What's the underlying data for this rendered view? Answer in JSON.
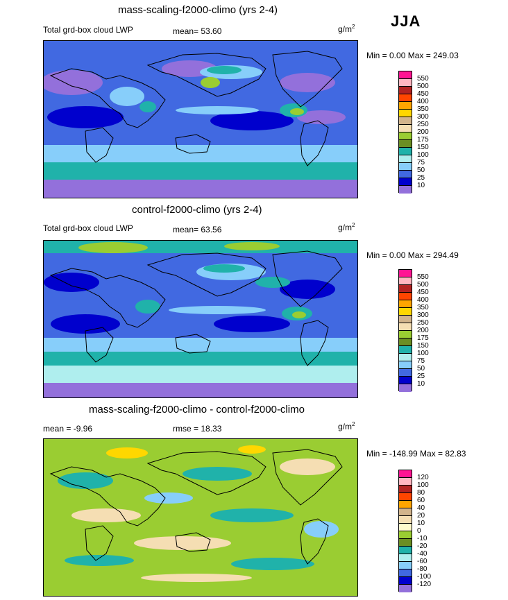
{
  "season": "JJA",
  "panels": [
    {
      "title": "mass-scaling-f2000-climo (yrs 2-4)",
      "left_label": "Total grd-box cloud LWP",
      "stat_label": "mean=",
      "stat_value": "53.60",
      "unit": "g/m",
      "unit_exp": "2",
      "minmax": "Min =   0.00 Max = 249.03",
      "legend_ticks": [
        "550",
        "500",
        "450",
        "400",
        "350",
        "300",
        "250",
        "200",
        "175",
        "150",
        "100",
        "75",
        "50",
        "25",
        "10"
      ],
      "legend_colors": [
        "#ff1493",
        "#ffb6c1",
        "#b22222",
        "#ff4500",
        "#ffa500",
        "#ffd700",
        "#d2b48c",
        "#f5deb3",
        "#9acd32",
        "#6b8e23",
        "#20b2aa",
        "#afeeee",
        "#87cefa",
        "#4169e1",
        "#0000cd",
        "#9370db"
      ]
    },
    {
      "title": "control-f2000-climo (yrs 2-4)",
      "left_label": "Total grd-box cloud LWP",
      "stat_label": "mean=",
      "stat_value": "63.56",
      "unit": "g/m",
      "unit_exp": "2",
      "minmax": "Min =   0.00 Max = 294.49",
      "legend_ticks": [
        "550",
        "500",
        "450",
        "400",
        "350",
        "300",
        "250",
        "200",
        "175",
        "150",
        "100",
        "75",
        "50",
        "25",
        "10"
      ],
      "legend_colors": [
        "#ff1493",
        "#ffb6c1",
        "#b22222",
        "#ff4500",
        "#ffa500",
        "#ffd700",
        "#d2b48c",
        "#f5deb3",
        "#9acd32",
        "#6b8e23",
        "#20b2aa",
        "#afeeee",
        "#87cefa",
        "#4169e1",
        "#0000cd",
        "#9370db"
      ]
    },
    {
      "title": "mass-scaling-f2000-climo - control-f2000-climo",
      "left_label": "mean =  -9.96",
      "stat_label": "rmse =",
      "stat_value": "18.33",
      "unit": "g/m",
      "unit_exp": "2",
      "minmax": "Min = -148.99 Max =  82.83",
      "legend_ticks": [
        "120",
        "100",
        "80",
        "60",
        "40",
        "20",
        "10",
        "0",
        "-10",
        "-20",
        "-40",
        "-60",
        "-80",
        "-100",
        "-120"
      ],
      "legend_colors": [
        "#ff1493",
        "#ffb6c1",
        "#b22222",
        "#ff4500",
        "#ffa500",
        "#d2b48c",
        "#f5deb3",
        "#fffacd",
        "#9acd32",
        "#6b8e23",
        "#20b2aa",
        "#afeeee",
        "#87cefa",
        "#4169e1",
        "#0000cd",
        "#9370db"
      ]
    }
  ]
}
